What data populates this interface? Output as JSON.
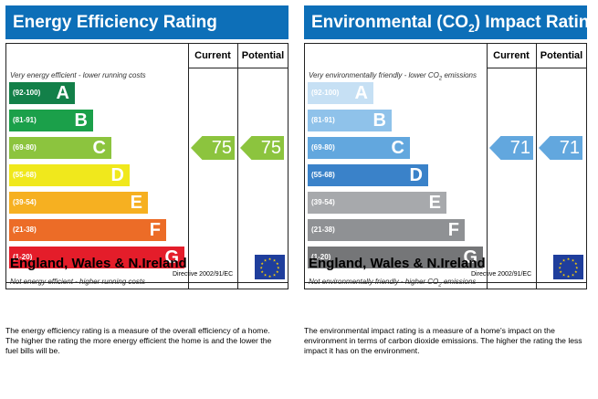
{
  "chart_data": [
    {
      "type": "bar",
      "title": "Energy Efficiency Rating",
      "column_headers": [
        "Current",
        "Potential"
      ],
      "top_note": "Very energy efficient - lower running costs",
      "bottom_note": "Not energy efficient - higher running costs",
      "bands": [
        {
          "range": "(92-100)",
          "letter": "A",
          "color": "#138049"
        },
        {
          "range": "(81-91)",
          "letter": "B",
          "color": "#1ba04a"
        },
        {
          "range": "(69-80)",
          "letter": "C",
          "color": "#8cc43e"
        },
        {
          "range": "(55-68)",
          "letter": "D",
          "color": "#f0e81c"
        },
        {
          "range": "(39-54)",
          "letter": "E",
          "color": "#f6b021"
        },
        {
          "range": "(21-38)",
          "letter": "F",
          "color": "#ec6c27"
        },
        {
          "range": "(1-20)",
          "letter": "G",
          "color": "#e41d2a"
        }
      ],
      "current": {
        "value": 75,
        "band": "C",
        "color": "#8cc43e"
      },
      "potential": {
        "value": 75,
        "band": "C",
        "color": "#8cc43e"
      },
      "footer_region": "England, Wales & N.Ireland",
      "footer_directive": "Directive 2002/91/EC",
      "caption": "The energy efficiency rating is a measure of the overall efficiency of a home. The higher the rating the more energy efficient the home is and the lower the fuel bills will be."
    },
    {
      "type": "bar",
      "title_pre": "Environmental (CO",
      "title_sub": "2",
      "title_post": ") Impact Rating",
      "column_headers": [
        "Current",
        "Potential"
      ],
      "top_note_pre": "Very environmentally friendly - lower CO",
      "top_note_sub": "2",
      "top_note_post": " emissions",
      "bottom_note_pre": "Not environmentally friendly - higher CO",
      "bottom_note_sub": "2",
      "bottom_note_post": " emissions",
      "bands": [
        {
          "range": "(92-100)",
          "letter": "A",
          "color": "#c6e0f4"
        },
        {
          "range": "(81-91)",
          "letter": "B",
          "color": "#8fc2ea"
        },
        {
          "range": "(69-80)",
          "letter": "C",
          "color": "#62a7de"
        },
        {
          "range": "(55-68)",
          "letter": "D",
          "color": "#3a82c9"
        },
        {
          "range": "(39-54)",
          "letter": "E",
          "color": "#a7a9ac"
        },
        {
          "range": "(21-38)",
          "letter": "F",
          "color": "#8f9194"
        },
        {
          "range": "(1-20)",
          "letter": "G",
          "color": "#757678"
        }
      ],
      "current": {
        "value": 71,
        "band": "C",
        "color": "#62a7de"
      },
      "potential": {
        "value": 71,
        "band": "C",
        "color": "#62a7de"
      },
      "footer_region": "England, Wales & N.Ireland",
      "footer_directive": "Directive 2002/91/EC",
      "caption": "The environmental impact rating is a measure of a home's impact on the environment in terms of carbon dioxide emissions. The higher the rating the less impact it has on the environment."
    }
  ],
  "icons": {
    "eu_flag": "eu-flag-icon"
  }
}
